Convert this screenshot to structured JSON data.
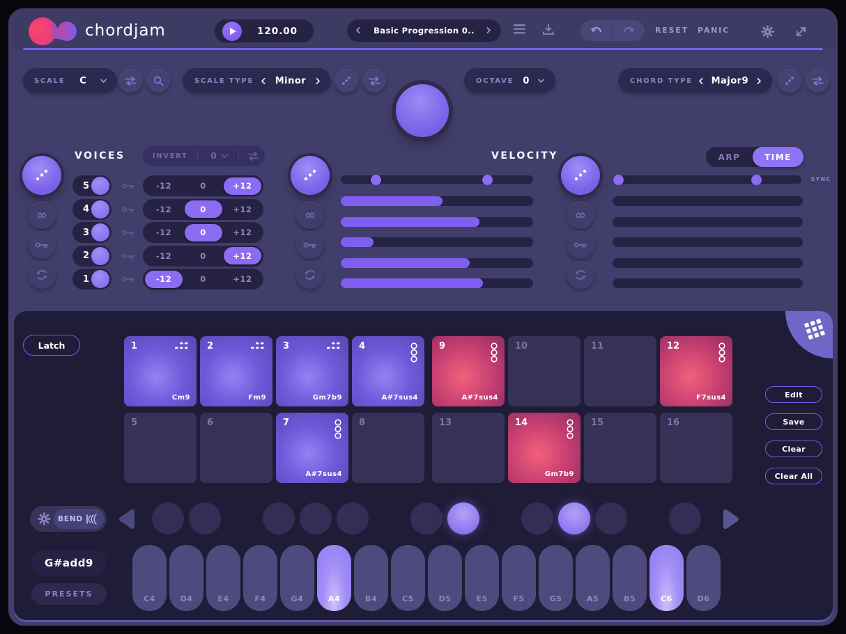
{
  "app": {
    "title": "chordjam"
  },
  "topbar": {
    "tempo": "120.00",
    "preset": "Basic Progression 0..",
    "reset_label": "RESET",
    "panic_label": "PANIC"
  },
  "scale": {
    "scale_label": "SCALE",
    "scale_value": "C",
    "scale_type_label": "SCALE TYPE",
    "scale_type_value": "Minor",
    "octave_label": "OCTAVE",
    "octave_value": "0",
    "chord_type_label": "CHORD TYPE",
    "chord_type_value": "Major9"
  },
  "voices": {
    "title": "VOICES",
    "invert_label": "INVERT",
    "invert_value": "0",
    "offset_options": [
      "-12",
      "0",
      "+12"
    ],
    "rows": [
      {
        "num": "5",
        "offset": "+12"
      },
      {
        "num": "4",
        "offset": "0"
      },
      {
        "num": "3",
        "offset": "0"
      },
      {
        "num": "2",
        "offset": "+12"
      },
      {
        "num": "1",
        "offset": "-12"
      }
    ]
  },
  "velocity": {
    "title": "VELOCITY",
    "range_handles_pct": [
      18,
      76
    ],
    "bars_pct": [
      53,
      72,
      17,
      67,
      74
    ]
  },
  "timing": {
    "arp_label": "ARP",
    "time_label": "TIME",
    "active": "TIME",
    "sync_label": "SYNC",
    "range_handles_pct": [
      3,
      76
    ],
    "bars_pct": [
      0,
      0,
      0,
      0,
      0
    ]
  },
  "pads": {
    "latch_label": "Latch",
    "buttons": [
      "Edit",
      "Save",
      "Clear",
      "Clear All"
    ],
    "cells": [
      {
        "num": "1",
        "chord": "Cm9",
        "state": "purple",
        "icon": "rhythm"
      },
      {
        "num": "2",
        "chord": "Fm9",
        "state": "purple",
        "icon": "rhythm"
      },
      {
        "num": "3",
        "chord": "Gm7b9",
        "state": "purple",
        "icon": "rhythm"
      },
      {
        "num": "4",
        "chord": "A#7sus4",
        "state": "purple",
        "icon": "rings"
      },
      {
        "num": "9",
        "chord": "A#7sus4",
        "state": "red",
        "icon": "rings"
      },
      {
        "num": "10",
        "chord": "",
        "state": "empty",
        "icon": "none"
      },
      {
        "num": "11",
        "chord": "",
        "state": "empty",
        "icon": "none"
      },
      {
        "num": "12",
        "chord": "F7sus4",
        "state": "red",
        "icon": "rings"
      },
      {
        "num": "5",
        "chord": "",
        "state": "empty",
        "icon": "none"
      },
      {
        "num": "6",
        "chord": "",
        "state": "empty",
        "icon": "none"
      },
      {
        "num": "7",
        "chord": "A#7sus4",
        "state": "purple",
        "icon": "rings"
      },
      {
        "num": "8",
        "chord": "",
        "state": "empty",
        "icon": "none"
      },
      {
        "num": "13",
        "chord": "",
        "state": "empty",
        "icon": "none"
      },
      {
        "num": "14",
        "chord": "Gm7b9",
        "state": "red",
        "icon": "rings"
      },
      {
        "num": "15",
        "chord": "",
        "state": "empty",
        "icon": "none"
      },
      {
        "num": "16",
        "chord": "",
        "state": "empty",
        "icon": "none"
      }
    ]
  },
  "keyboard": {
    "bend_label": "BEND",
    "chord_display": "G#add9",
    "presets_label": "PRESETS",
    "white_keys": [
      {
        "label": "C4",
        "active": false
      },
      {
        "label": "D4",
        "active": false
      },
      {
        "label": "E4",
        "active": false
      },
      {
        "label": "F4",
        "active": false
      },
      {
        "label": "G4",
        "active": false
      },
      {
        "label": "A4",
        "active": true
      },
      {
        "label": "B4",
        "active": false
      },
      {
        "label": "C5",
        "active": false
      },
      {
        "label": "D5",
        "active": false
      },
      {
        "label": "E5",
        "active": false
      },
      {
        "label": "F5",
        "active": false
      },
      {
        "label": "G5",
        "active": false
      },
      {
        "label": "A5",
        "active": false
      },
      {
        "label": "B5",
        "active": false
      },
      {
        "label": "C6",
        "active": true
      },
      {
        "label": "D6",
        "active": false
      }
    ],
    "black_keys": [
      {
        "note": "C#4",
        "after_index": 0,
        "active": false
      },
      {
        "note": "D#4",
        "after_index": 1,
        "active": false
      },
      {
        "note": "F#4",
        "after_index": 3,
        "active": false
      },
      {
        "note": "G#4",
        "after_index": 4,
        "active": false
      },
      {
        "note": "A#4",
        "after_index": 5,
        "active": false
      },
      {
        "note": "C#5",
        "after_index": 7,
        "active": false
      },
      {
        "note": "D#5",
        "after_index": 8,
        "active": true
      },
      {
        "note": "F#5",
        "after_index": 10,
        "active": false
      },
      {
        "note": "G#5",
        "after_index": 11,
        "active": true
      },
      {
        "note": "A#5",
        "after_index": 12,
        "active": false
      },
      {
        "note": "C#6",
        "after_index": 14,
        "active": false
      }
    ]
  },
  "colors": {
    "accent": "#7c5cf0",
    "accent_light": "#8b6cf2",
    "background": "#423e6b",
    "panel": "#1f1c37",
    "pill": "#262243",
    "pad_purple": "#8d7af0",
    "pad_red": "#e8537a",
    "logo_pink": "#f43f6e",
    "text_dim": "#8a84bf"
  }
}
